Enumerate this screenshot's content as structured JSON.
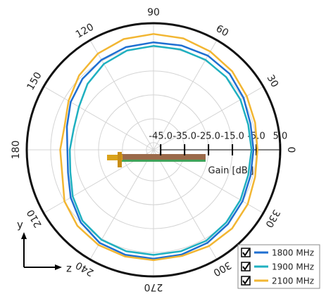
{
  "chart_data": {
    "type": "polar",
    "theta": [
      0,
      15,
      30,
      45,
      60,
      75,
      90,
      105,
      120,
      135,
      150,
      165,
      180,
      195,
      210,
      225,
      240,
      255,
      270,
      285,
      300,
      315,
      330,
      345
    ],
    "series": [
      {
        "name": "1800 MHz",
        "color": "#1f6fd1",
        "values": [
          -6.2,
          -6,
          -4.5,
          -3,
          -2.5,
          -2.8,
          -3,
          -3.5,
          -4.5,
          -6,
          -8,
          -10.5,
          -12,
          -11,
          -8,
          -5,
          -3,
          -2.5,
          -2.4,
          -2.6,
          -3,
          -4,
          -5,
          -6
        ]
      },
      {
        "name": "1900 MHz",
        "color": "#1fb0c0",
        "values": [
          -7,
          -7,
          -6,
          -5,
          -4.5,
          -4.5,
          -4.5,
          -5,
          -6.5,
          -9,
          -12,
          -13.5,
          -13,
          -12,
          -9,
          -6,
          -4.5,
          -4,
          -4,
          -4,
          -4,
          -5,
          -6,
          -7
        ]
      },
      {
        "name": "2100 MHz",
        "color": "#f2b632",
        "values": [
          -4.5,
          -4,
          -3,
          -1.5,
          -0.5,
          0.3,
          0.5,
          0,
          -1.5,
          -4,
          -7,
          -9.5,
          -9,
          -8.5,
          -5,
          -3,
          -2,
          -1.8,
          -1.8,
          -2,
          -1.5,
          -1.5,
          -2.5,
          -4
        ]
      }
    ],
    "rlim": [
      -48,
      5
    ],
    "rticks": [
      {
        "value": -45,
        "label": "-45.0"
      },
      {
        "value": -35,
        "label": "-35.0"
      },
      {
        "value": -25,
        "label": "-25.0"
      },
      {
        "value": -15,
        "label": "-15.0"
      },
      {
        "value": -5,
        "label": "-5.0"
      },
      {
        "value": 5,
        "label": "5.0"
      }
    ],
    "thetaticks": [
      0,
      30,
      60,
      90,
      120,
      150,
      180,
      210,
      240,
      270,
      300,
      330
    ],
    "r_label": "Gain [dBi]",
    "grid": true,
    "legend": "lower right",
    "axes_indicator": {
      "vertical": "y",
      "horizontal": "z"
    }
  }
}
